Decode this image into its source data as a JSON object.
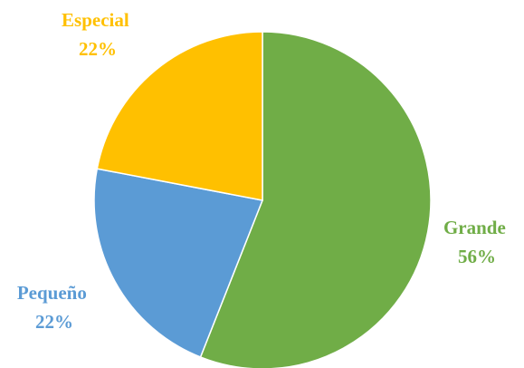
{
  "chart_data": {
    "type": "pie",
    "slices": [
      {
        "category": "Grande",
        "percent": "56%",
        "value": 56,
        "color": "#70AD47"
      },
      {
        "category": "Pequeño",
        "percent": "22%",
        "value": 22,
        "color": "#5B9BD5"
      },
      {
        "category": "Especial",
        "percent": "22%",
        "value": 22,
        "color": "#FFC000"
      }
    ],
    "start_angle": "12 o'clock",
    "direction": "clockwise",
    "data_labels": "category and percent, outside",
    "legend": "none"
  }
}
